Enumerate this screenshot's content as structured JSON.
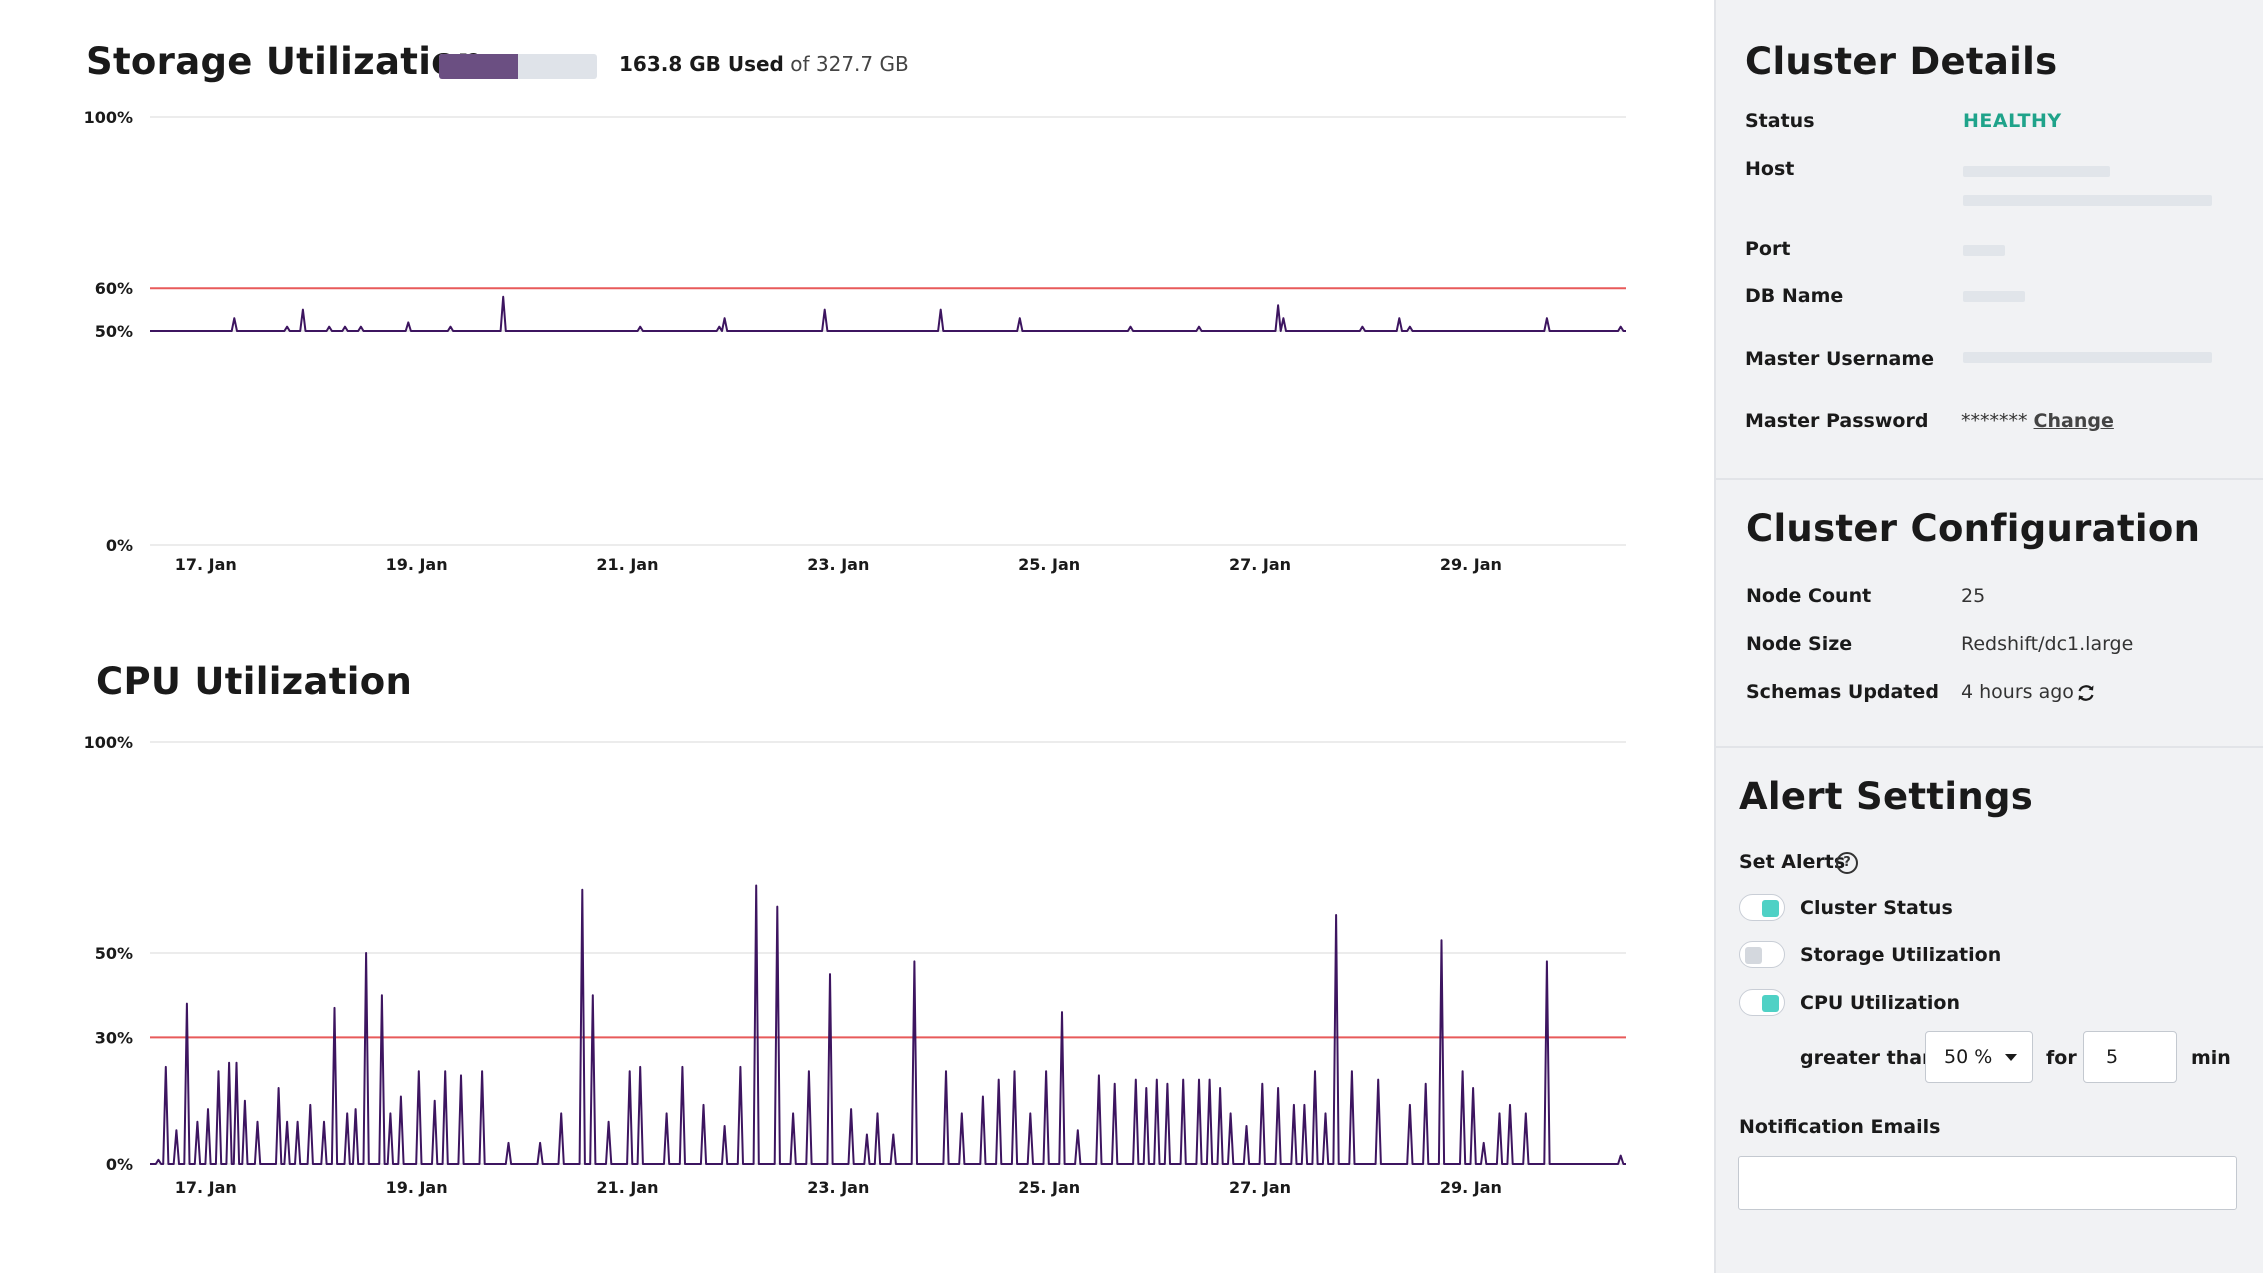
{
  "storage": {
    "title": "Storage Utilization",
    "used_label": "163.8 GB Used",
    "of_label": "of 327.7 GB",
    "used_fraction": 0.5
  },
  "cpu": {
    "title": "CPU Utilization"
  },
  "colors": {
    "line": "#3d1560",
    "threshold": "#e85a5a",
    "grid": "#e6e6e6",
    "gauge": "#6b4f82",
    "toggle_on": "#4fd1c5",
    "healthy": "#1fa38a"
  },
  "chart_data": [
    {
      "type": "line",
      "title": "Storage Utilization",
      "x_unit": "days",
      "x_range": [
        16.5,
        30.5
      ],
      "xticks": [
        17,
        19,
        21,
        23,
        25,
        27,
        29
      ],
      "xtick_labels": [
        "17. Jan",
        "19. Jan",
        "21. Jan",
        "23. Jan",
        "25. Jan",
        "27. Jan",
        "29. Jan"
      ],
      "ylim": [
        0,
        100
      ],
      "yticks": [
        0,
        50,
        60,
        100
      ],
      "ytick_labels": [
        "0%",
        "50%",
        "60%",
        "100%"
      ],
      "threshold": 60,
      "baseline": 50,
      "spikes": [
        [
          17.3,
          53
        ],
        [
          17.8,
          51
        ],
        [
          17.95,
          55
        ],
        [
          18.2,
          51
        ],
        [
          18.35,
          51
        ],
        [
          18.5,
          51
        ],
        [
          18.95,
          52
        ],
        [
          19.35,
          51
        ],
        [
          19.85,
          58
        ],
        [
          21.15,
          51
        ],
        [
          21.9,
          51
        ],
        [
          21.95,
          53
        ],
        [
          22.9,
          55
        ],
        [
          24.0,
          55
        ],
        [
          24.75,
          53
        ],
        [
          25.8,
          51
        ],
        [
          26.45,
          51
        ],
        [
          27.2,
          56
        ],
        [
          27.25,
          53
        ],
        [
          28.0,
          51
        ],
        [
          28.35,
          53
        ],
        [
          28.45,
          51
        ],
        [
          29.75,
          53
        ],
        [
          30.45,
          51
        ]
      ]
    },
    {
      "type": "line",
      "title": "CPU Utilization",
      "x_unit": "days",
      "x_range": [
        16.5,
        30.5
      ],
      "xticks": [
        17,
        19,
        21,
        23,
        25,
        27,
        29
      ],
      "xtick_labels": [
        "17. Jan",
        "19. Jan",
        "21. Jan",
        "23. Jan",
        "25. Jan",
        "27. Jan",
        "29. Jan"
      ],
      "ylim": [
        0,
        100
      ],
      "yticks": [
        0,
        30,
        50,
        100
      ],
      "ytick_labels": [
        "0%",
        "30%",
        "50%",
        "100%"
      ],
      "threshold": 30,
      "baseline": 0,
      "spikes": [
        [
          16.58,
          1
        ],
        [
          16.65,
          23
        ],
        [
          16.75,
          8
        ],
        [
          16.85,
          38
        ],
        [
          16.95,
          10
        ],
        [
          17.05,
          13
        ],
        [
          17.15,
          22
        ],
        [
          17.25,
          24
        ],
        [
          17.32,
          24
        ],
        [
          17.4,
          15
        ],
        [
          17.52,
          10
        ],
        [
          17.72,
          18
        ],
        [
          17.8,
          10
        ],
        [
          17.9,
          10
        ],
        [
          18.02,
          14
        ],
        [
          18.15,
          10
        ],
        [
          18.25,
          37
        ],
        [
          18.37,
          12
        ],
        [
          18.45,
          13
        ],
        [
          18.55,
          50
        ],
        [
          18.7,
          40
        ],
        [
          18.78,
          12
        ],
        [
          18.88,
          16
        ],
        [
          19.05,
          22
        ],
        [
          19.2,
          15
        ],
        [
          19.3,
          22
        ],
        [
          19.45,
          21
        ],
        [
          19.65,
          22
        ],
        [
          19.9,
          5
        ],
        [
          20.2,
          5
        ],
        [
          20.4,
          12
        ],
        [
          20.6,
          65
        ],
        [
          20.7,
          40
        ],
        [
          20.85,
          10
        ],
        [
          21.05,
          22
        ],
        [
          21.15,
          23
        ],
        [
          21.4,
          12
        ],
        [
          21.55,
          23
        ],
        [
          21.75,
          14
        ],
        [
          21.95,
          9
        ],
        [
          22.1,
          23
        ],
        [
          22.25,
          66
        ],
        [
          22.45,
          61
        ],
        [
          22.6,
          12
        ],
        [
          22.75,
          22
        ],
        [
          22.95,
          45
        ],
        [
          23.15,
          13
        ],
        [
          23.3,
          7
        ],
        [
          23.4,
          12
        ],
        [
          23.55,
          7
        ],
        [
          23.75,
          48
        ],
        [
          24.05,
          22
        ],
        [
          24.2,
          12
        ],
        [
          24.4,
          16
        ],
        [
          24.55,
          20
        ],
        [
          24.7,
          22
        ],
        [
          24.85,
          12
        ],
        [
          25.0,
          22
        ],
        [
          25.15,
          36
        ],
        [
          25.3,
          8
        ],
        [
          25.5,
          21
        ],
        [
          25.65,
          19
        ],
        [
          25.85,
          20
        ],
        [
          25.95,
          18
        ],
        [
          26.05,
          20
        ],
        [
          26.15,
          19
        ],
        [
          26.3,
          20
        ],
        [
          26.45,
          20
        ],
        [
          26.55,
          20
        ],
        [
          26.65,
          18
        ],
        [
          26.75,
          12
        ],
        [
          26.9,
          9
        ],
        [
          27.05,
          19
        ],
        [
          27.2,
          18
        ],
        [
          27.35,
          14
        ],
        [
          27.45,
          14
        ],
        [
          27.55,
          22
        ],
        [
          27.65,
          12
        ],
        [
          27.75,
          59
        ],
        [
          27.9,
          22
        ],
        [
          28.15,
          20
        ],
        [
          28.45,
          14
        ],
        [
          28.6,
          19
        ],
        [
          28.75,
          53
        ],
        [
          28.95,
          22
        ],
        [
          29.05,
          18
        ],
        [
          29.15,
          5
        ],
        [
          29.3,
          12
        ],
        [
          29.4,
          14
        ],
        [
          29.55,
          12
        ],
        [
          29.75,
          48
        ],
        [
          30.45,
          2
        ]
      ]
    }
  ],
  "cluster_details": {
    "title": "Cluster Details",
    "status_label": "Status",
    "status_value": "HEALTHY",
    "host_label": "Host",
    "port_label": "Port",
    "db_label": "DB Name",
    "username_label": "Master Username",
    "password_label": "Master Password",
    "password_value": "*******",
    "change_label": "Change"
  },
  "cluster_config": {
    "title": "Cluster Configuration",
    "node_count_label": "Node Count",
    "node_count_value": "25",
    "node_size_label": "Node Size",
    "node_size_value": "Redshift/dc1.large",
    "schemas_label": "Schemas Updated",
    "schemas_value": "4 hours ago"
  },
  "alerts": {
    "title": "Alert Settings",
    "set_alerts_label": "Set Alerts",
    "help_glyph": "?",
    "cluster_status": {
      "label": "Cluster Status",
      "on": true
    },
    "storage_utilization": {
      "label": "Storage Utilization",
      "on": false
    },
    "cpu_utilization": {
      "label": "CPU Utilization",
      "on": true
    },
    "greater_than_label": "greater than",
    "threshold_value": "50 %",
    "for_label": "for",
    "duration_value": "5",
    "min_label": "min",
    "notification_label": "Notification Emails",
    "email_value": ""
  }
}
